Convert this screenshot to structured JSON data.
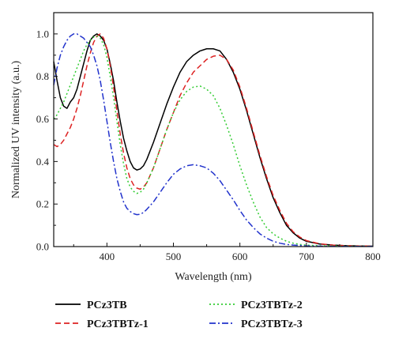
{
  "chart_data": {
    "type": "line",
    "xlabel": "Wavelength (nm)",
    "ylabel": "Normalized UV intensity (a.u.)",
    "xlim": [
      320,
      800
    ],
    "ylim": [
      0,
      1.1
    ],
    "x_ticks": [
      400,
      500,
      600,
      700,
      800
    ],
    "y_ticks": [
      0.0,
      0.2,
      0.4,
      0.6,
      0.8,
      1.0
    ],
    "x_tick_labels": [
      "400",
      "500",
      "600",
      "700",
      "800"
    ],
    "y_tick_labels": [
      "0.0",
      "0.2",
      "0.4",
      "0.6",
      "0.8",
      "1.0"
    ],
    "grid": false,
    "legend_position": "bottom, below plot, two columns",
    "series": [
      {
        "name": "PCz3TB",
        "color": "#000000",
        "dash": "solid",
        "x": [
          320,
          325,
          330,
          335,
          340,
          345,
          350,
          355,
          360,
          365,
          370,
          375,
          380,
          385,
          390,
          395,
          400,
          405,
          410,
          415,
          420,
          425,
          430,
          435,
          440,
          445,
          450,
          455,
          460,
          470,
          480,
          490,
          500,
          510,
          520,
          530,
          540,
          550,
          560,
          570,
          580,
          590,
          600,
          610,
          620,
          630,
          640,
          650,
          660,
          670,
          680,
          690,
          700,
          720,
          740,
          760,
          780,
          800
        ],
        "y": [
          0.87,
          0.78,
          0.7,
          0.66,
          0.65,
          0.68,
          0.7,
          0.74,
          0.8,
          0.86,
          0.92,
          0.97,
          0.99,
          1.0,
          0.99,
          0.97,
          0.93,
          0.86,
          0.78,
          0.68,
          0.59,
          0.51,
          0.45,
          0.4,
          0.37,
          0.36,
          0.365,
          0.38,
          0.41,
          0.49,
          0.58,
          0.67,
          0.75,
          0.82,
          0.87,
          0.9,
          0.92,
          0.93,
          0.93,
          0.92,
          0.88,
          0.82,
          0.74,
          0.64,
          0.53,
          0.42,
          0.32,
          0.23,
          0.16,
          0.1,
          0.065,
          0.04,
          0.025,
          0.012,
          0.007,
          0.004,
          0.003,
          0.002
        ]
      },
      {
        "name": "PCz3TBTz-1",
        "color": "#dd2222",
        "dash": "dashed",
        "x": [
          320,
          325,
          330,
          335,
          340,
          345,
          350,
          355,
          360,
          365,
          370,
          375,
          380,
          385,
          390,
          395,
          400,
          405,
          410,
          415,
          420,
          425,
          430,
          435,
          440,
          445,
          450,
          455,
          460,
          470,
          480,
          490,
          500,
          510,
          520,
          530,
          540,
          550,
          560,
          570,
          580,
          590,
          600,
          610,
          620,
          630,
          640,
          650,
          660,
          670,
          680,
          690,
          700,
          720,
          740,
          760,
          780,
          800
        ],
        "y": [
          0.48,
          0.47,
          0.48,
          0.5,
          0.53,
          0.56,
          0.6,
          0.65,
          0.71,
          0.78,
          0.85,
          0.91,
          0.96,
          0.99,
          1.0,
          0.98,
          0.93,
          0.85,
          0.75,
          0.64,
          0.53,
          0.44,
          0.37,
          0.32,
          0.29,
          0.275,
          0.27,
          0.28,
          0.3,
          0.37,
          0.46,
          0.55,
          0.63,
          0.71,
          0.77,
          0.82,
          0.85,
          0.88,
          0.895,
          0.9,
          0.88,
          0.83,
          0.75,
          0.65,
          0.54,
          0.43,
          0.33,
          0.24,
          0.17,
          0.11,
          0.07,
          0.045,
          0.028,
          0.013,
          0.007,
          0.004,
          0.003,
          0.002
        ]
      },
      {
        "name": "PCz3TBTz-2",
        "color": "#33cc33",
        "dash": "dotted",
        "x": [
          320,
          325,
          330,
          335,
          340,
          345,
          350,
          355,
          360,
          365,
          370,
          375,
          380,
          385,
          390,
          395,
          400,
          405,
          410,
          415,
          420,
          425,
          430,
          435,
          440,
          445,
          450,
          455,
          460,
          470,
          480,
          490,
          500,
          510,
          520,
          530,
          540,
          550,
          560,
          570,
          580,
          590,
          600,
          610,
          620,
          630,
          640,
          650,
          660,
          670,
          680,
          690,
          700,
          720,
          740,
          760,
          780,
          800
        ],
        "y": [
          0.6,
          0.62,
          0.65,
          0.68,
          0.72,
          0.76,
          0.8,
          0.84,
          0.88,
          0.92,
          0.95,
          0.97,
          0.985,
          0.99,
          0.98,
          0.95,
          0.89,
          0.8,
          0.7,
          0.59,
          0.48,
          0.39,
          0.32,
          0.28,
          0.26,
          0.25,
          0.255,
          0.27,
          0.3,
          0.37,
          0.46,
          0.55,
          0.63,
          0.69,
          0.73,
          0.75,
          0.755,
          0.74,
          0.71,
          0.65,
          0.57,
          0.48,
          0.38,
          0.29,
          0.21,
          0.14,
          0.09,
          0.06,
          0.04,
          0.025,
          0.016,
          0.01,
          0.007,
          0.004,
          0.003,
          0.002,
          0.002,
          0.001
        ]
      },
      {
        "name": "PCz3TBTz-3",
        "color": "#2233cc",
        "dash": "dashdot",
        "x": [
          320,
          325,
          330,
          335,
          340,
          345,
          350,
          355,
          360,
          365,
          370,
          375,
          380,
          385,
          390,
          395,
          400,
          405,
          410,
          415,
          420,
          425,
          430,
          435,
          440,
          445,
          450,
          455,
          460,
          470,
          480,
          490,
          500,
          510,
          520,
          530,
          540,
          550,
          560,
          570,
          580,
          590,
          600,
          610,
          620,
          630,
          640,
          650,
          660,
          670,
          680,
          690,
          700,
          720,
          740,
          760,
          780,
          800
        ],
        "y": [
          0.76,
          0.84,
          0.9,
          0.94,
          0.97,
          0.99,
          1.0,
          1.0,
          0.99,
          0.98,
          0.96,
          0.94,
          0.9,
          0.85,
          0.78,
          0.69,
          0.59,
          0.49,
          0.4,
          0.32,
          0.26,
          0.21,
          0.18,
          0.165,
          0.155,
          0.15,
          0.152,
          0.16,
          0.175,
          0.21,
          0.255,
          0.3,
          0.34,
          0.365,
          0.38,
          0.385,
          0.38,
          0.37,
          0.345,
          0.31,
          0.265,
          0.22,
          0.17,
          0.125,
          0.09,
          0.06,
          0.04,
          0.025,
          0.016,
          0.01,
          0.007,
          0.005,
          0.003,
          0.002,
          0.001,
          0.001,
          0.001,
          0.001
        ]
      }
    ]
  }
}
